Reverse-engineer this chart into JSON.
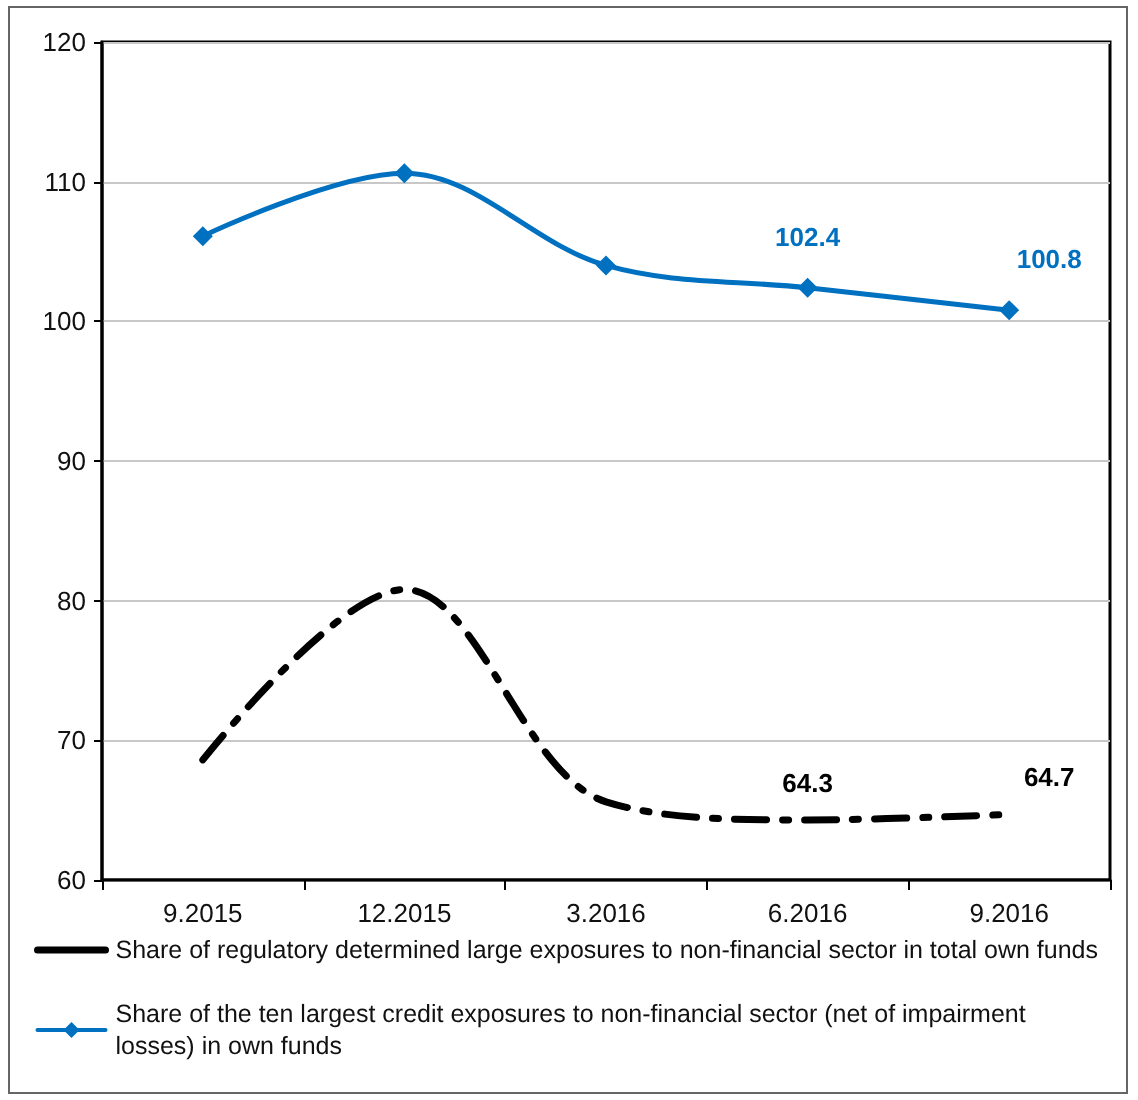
{
  "chart_data": {
    "type": "line",
    "categories": [
      "9.2015",
      "12.2015",
      "3.2016",
      "6.2016",
      "9.2016"
    ],
    "series": [
      {
        "name": "Share of regulatory determined large exposures to non-financial sector in total own funds",
        "color": "#000000",
        "values": [
          68.6,
          80.8,
          65.6,
          64.3,
          64.7
        ],
        "value_labels": [
          null,
          null,
          null,
          "64.3",
          "64.7"
        ],
        "line_style": "dashed",
        "marker": "none"
      },
      {
        "name": "Share of the ten largest credit exposures to non-financial sector (net of impairment losses) in own funds",
        "color": "#0070c0",
        "values": [
          106.1,
          110.6,
          104.0,
          102.4,
          100.8
        ],
        "value_labels": [
          null,
          null,
          null,
          "102.4",
          "100.8"
        ],
        "line_style": "solid",
        "marker": "diamond"
      }
    ],
    "ylim": [
      60,
      120
    ],
    "yticks": [
      60,
      70,
      80,
      90,
      100,
      110,
      120
    ],
    "grid": "y",
    "legend": "bottom"
  }
}
